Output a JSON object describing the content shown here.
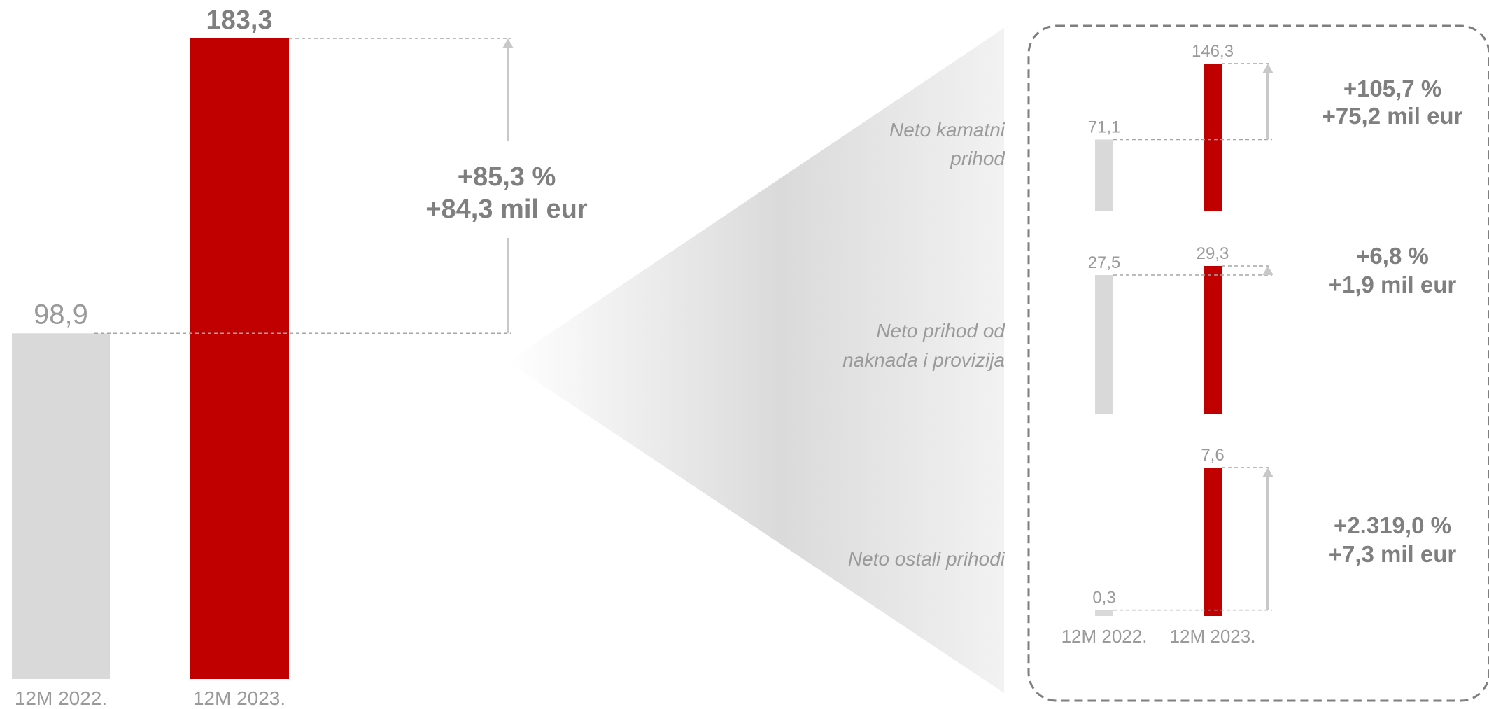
{
  "colors": {
    "base": "#d9d9d9",
    "current": "#c00000",
    "text_dark": "#7f7f7f",
    "text_light": "#9a9a9a",
    "arrow": "#c8c8c8",
    "dash": "#a6a6a6",
    "frame": "#7f7f7f"
  },
  "chart_data": [
    {
      "type": "bar",
      "categories": [
        "12M 2022.",
        "12M 2023."
      ],
      "values": [
        98.9,
        183.3
      ],
      "value_labels": [
        "98,9",
        "183,3"
      ],
      "ylim": [
        0,
        183.3
      ],
      "change": {
        "percent": "+85,3 %",
        "amount": "+84,3 mil eur"
      }
    },
    {
      "type": "bar",
      "title": "Neto kamatni prihod",
      "title_lines": [
        "Neto kamatni",
        "prihod"
      ],
      "categories": [
        "12M 2022.",
        "12M 2023."
      ],
      "values": [
        71.1,
        146.3
      ],
      "value_labels": [
        "71,1",
        "146,3"
      ],
      "change": {
        "percent": "+105,7 %",
        "amount": "+75,2 mil eur"
      }
    },
    {
      "type": "bar",
      "title": "Neto prihod od naknada i provizija",
      "title_lines": [
        "Neto prihod od",
        "naknada i provizija"
      ],
      "categories": [
        "12M 2022.",
        "12M 2023."
      ],
      "values": [
        27.5,
        29.3
      ],
      "value_labels": [
        "27,5",
        "29,3"
      ],
      "change": {
        "percent": "+6,8 %",
        "amount": "+1,9 mil eur"
      }
    },
    {
      "type": "bar",
      "title": "Neto ostali prihodi",
      "title_lines": [
        "Neto ostali prihodi"
      ],
      "categories": [
        "12M 2022.",
        "12M 2023."
      ],
      "values": [
        0.3,
        7.6
      ],
      "value_labels": [
        "0,3",
        "7,6"
      ],
      "change": {
        "percent": "+2.319,0 %",
        "amount": "+7,3 mil eur"
      }
    }
  ]
}
